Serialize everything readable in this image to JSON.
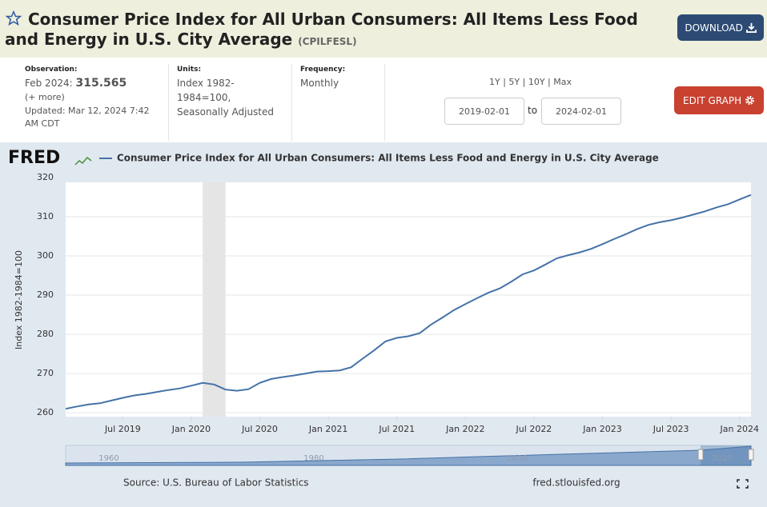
{
  "header": {
    "title": "Consumer Price Index for All Urban Consumers: All Items Less Food and Energy in U.S. City Average",
    "symbol": "(CPILFESL)",
    "download": "DOWNLOAD"
  },
  "info": {
    "observation_label": "Observation:",
    "observation_date": "Feb 2024:",
    "observation_value": "315.565",
    "more": "(+ more)",
    "updated_label": "Updated:",
    "updated": "Mar 12, 2024 7:42 AM CDT",
    "units_label": "Units:",
    "units": "Index 1982-1984=100, Seasonally Adjusted",
    "frequency_label": "Frequency:",
    "frequency": "Monthly"
  },
  "controls": {
    "ranges": [
      "1Y",
      "5Y",
      "10Y",
      "Max"
    ],
    "start": "2019-02-01",
    "to": "to",
    "end": "2024-02-01",
    "edit": "EDIT GRAPH"
  },
  "chart_data": {
    "type": "line",
    "logo": "FRED",
    "ylabel": "Index 1982-1984=100",
    "x": [
      "2019-02",
      "2019-03",
      "2019-04",
      "2019-05",
      "2019-06",
      "2019-07",
      "2019-08",
      "2019-09",
      "2019-10",
      "2019-11",
      "2019-12",
      "2020-01",
      "2020-02",
      "2020-03",
      "2020-04",
      "2020-05",
      "2020-06",
      "2020-07",
      "2020-08",
      "2020-09",
      "2020-10",
      "2020-11",
      "2020-12",
      "2021-01",
      "2021-02",
      "2021-03",
      "2021-04",
      "2021-05",
      "2021-06",
      "2021-07",
      "2021-08",
      "2021-09",
      "2021-10",
      "2021-11",
      "2021-12",
      "2022-01",
      "2022-02",
      "2022-03",
      "2022-04",
      "2022-05",
      "2022-06",
      "2022-07",
      "2022-08",
      "2022-09",
      "2022-10",
      "2022-11",
      "2022-12",
      "2023-01",
      "2023-02",
      "2023-03",
      "2023-04",
      "2023-05",
      "2023-06",
      "2023-07",
      "2023-08",
      "2023-09",
      "2023-10",
      "2023-11",
      "2023-12",
      "2024-01",
      "2024-02"
    ],
    "series": [
      {
        "name": "Consumer Price Index for All Urban Consumers: All Items Less Food and Energy in U.S. City Average",
        "color": "#4572a7",
        "values": [
          261.0,
          261.6,
          262.1,
          262.4,
          263.1,
          263.8,
          264.4,
          264.8,
          265.3,
          265.8,
          266.2,
          266.9,
          267.6,
          267.2,
          265.9,
          265.6,
          266.0,
          267.6,
          268.6,
          269.1,
          269.5,
          270.0,
          270.5,
          270.6,
          270.8,
          271.6,
          273.8,
          275.9,
          278.2,
          279.1,
          279.5,
          280.3,
          282.5,
          284.3,
          286.2,
          287.7,
          289.2,
          290.6,
          291.7,
          293.4,
          295.3,
          296.3,
          297.8,
          299.4,
          300.2,
          300.9,
          301.8,
          303.0,
          304.3,
          305.5,
          306.8,
          307.9,
          308.6,
          309.1,
          309.8,
          310.6,
          311.4,
          312.4,
          313.2,
          314.4,
          315.565
        ]
      }
    ],
    "recession": [
      "2020-02",
      "2020-04"
    ],
    "xlim": [
      "2019-02",
      "2024-02"
    ],
    "xticks": [
      {
        "value": "2019-07",
        "label": "Jul 2019"
      },
      {
        "value": "2020-01",
        "label": "Jan 2020"
      },
      {
        "value": "2020-07",
        "label": "Jul 2020"
      },
      {
        "value": "2021-01",
        "label": "Jan 2021"
      },
      {
        "value": "2021-07",
        "label": "Jul 2021"
      },
      {
        "value": "2022-01",
        "label": "Jan 2022"
      },
      {
        "value": "2022-07",
        "label": "Jul 2022"
      },
      {
        "value": "2023-01",
        "label": "Jan 2023"
      },
      {
        "value": "2023-07",
        "label": "Jul 2023"
      },
      {
        "value": "2024-01",
        "label": "Jan 2024"
      }
    ],
    "ylim": [
      259,
      320
    ],
    "yticks": [
      260,
      270,
      280,
      290,
      300,
      310,
      320
    ],
    "grid": true,
    "navigator_labels": [
      "1960",
      "1980",
      "2000",
      "2020"
    ],
    "source": "Source: U.S. Bureau of Labor Statistics",
    "site": "fred.stlouisfed.org"
  }
}
